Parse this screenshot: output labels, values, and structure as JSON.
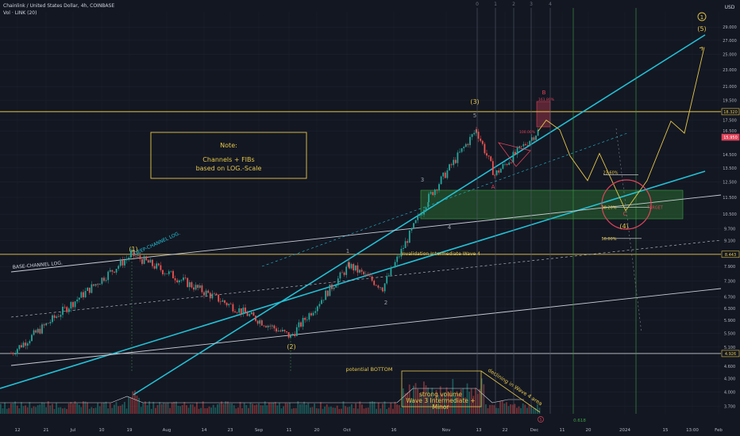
{
  "header": {
    "symbol_line": "Chainlink / United States Dollar, 4h, COINBASE",
    "volume_line": "Vol · LINK (20)"
  },
  "chart_meta": {
    "currency": "USD",
    "top_markers": [
      "0",
      "1",
      "2",
      "3",
      "4"
    ],
    "fib_bottom_label": "0.618",
    "corner_label": "5",
    "colors": {
      "background": "#131722",
      "channel_cyan": "#22c1d6",
      "white_line": "#c9ccd4",
      "yellow": "#e6c74a",
      "green_zone": "#2e7d32",
      "red": "#e0435a",
      "candle_up": "#26a69a",
      "candle_down": "#ef5350"
    }
  },
  "annotations": {
    "note_title": "Note:",
    "note_line1": "Channels + FIBs",
    "note_line2": "based on LOG.-Scale",
    "base_channel": "BASE-CHANNEL LOG.",
    "deep_channel": "DEEP-CHANNEL LOG.",
    "invalidation": "Invalidation Intermediate Wave 4",
    "potential_bottom": "potential BOTTOM",
    "strong_volume": "strong volume",
    "wave3_line": "Wave 3 Intermediate +",
    "minor": "Minor",
    "declining": "declining in Wave 4 area",
    "fib_2360": "23.60%",
    "fib_3820": "38.20%",
    "fib_5000": "50.00%",
    "target": "TARGET",
    "fib_161": "161.80%",
    "fib_100": "100.00%"
  },
  "wave_labels": {
    "w1_top": "(1)",
    "w2": "(2)",
    "w3_top": "(3)",
    "w4": "(4)",
    "w5": "(5)",
    "circle1": "1",
    "minor1": "1",
    "minor2": "2",
    "minor3": "3",
    "minor4": "4",
    "minor5": "5",
    "A": "A",
    "B": "B",
    "C": "C"
  },
  "chart_data": {
    "type": "candlestick",
    "yscale": "log",
    "ylim": [
      3.55,
      31.5
    ],
    "y_ticks": [
      3.7,
      4.0,
      4.3,
      4.6,
      5.1,
      5.5,
      5.9,
      6.3,
      6.7,
      7.3,
      7.9,
      8.4,
      9.1,
      9.7,
      10.5,
      11.5,
      12.5,
      13.5,
      14.5,
      16.5,
      17.5,
      19.5,
      21.0,
      23.0,
      25.0,
      27.0,
      29.0
    ],
    "y_tick_labels": [
      "3.700",
      "4.000",
      "4.300",
      "4.600",
      "5.100",
      "5.500",
      "5.900",
      "6.300",
      "6.700",
      "7.300",
      "7.900",
      "8.400",
      "9.100",
      "9.700",
      "10.500",
      "11.500",
      "12.500",
      "13.500",
      "14.500",
      "16.500",
      "17.500",
      "19.500",
      "21.000",
      "23.000",
      "25.000",
      "27.000",
      "29.000"
    ],
    "x_tick_labels": [
      "12",
      "21",
      "Jul",
      "10",
      "19",
      "Aug",
      "14",
      "23",
      "Sep",
      "11",
      "20",
      "Oct",
      "16",
      "Nov",
      "13",
      "22",
      "Dec",
      "11",
      "20",
      "2024",
      "15",
      "13:00",
      "Feb"
    ],
    "price_flags": [
      {
        "label": "18.320",
        "value": 18.32,
        "kind": "level"
      },
      {
        "label": "15.950",
        "value": 15.95,
        "kind": "last"
      },
      {
        "label": "8.443",
        "value": 8.443,
        "kind": "level"
      },
      {
        "label": "4.926",
        "value": 4.926,
        "kind": "level"
      }
    ],
    "horizontal_levels": [
      18.32,
      8.443,
      4.926
    ],
    "path_waypoints": [
      {
        "x": "mid-May",
        "y": 4.93
      },
      {
        "x": "Jul 19",
        "y": 8.44
      },
      {
        "x": "Sep 11",
        "y": 5.4
      },
      {
        "x": "Oct 10",
        "y": 7.95
      },
      {
        "x": "Oct 18",
        "y": 7.05
      },
      {
        "x": "Nov 01",
        "y": 11.5
      },
      {
        "x": "Nov 12",
        "y": 16.6
      },
      {
        "x": "Nov 17",
        "y": 13.0
      },
      {
        "x": "Dec 02",
        "y": 16.5
      }
    ],
    "projection": [
      {
        "wave": "B",
        "y": 18.9
      },
      {
        "wave": "A",
        "y": 14.4
      },
      {
        "wave": "(4) C",
        "y": 10.7
      },
      {
        "wave": "(5)",
        "y": 26.0
      }
    ],
    "volume_bars": "20-period LINK volume, peak during Wave 3 (late Oct – early Nov)"
  }
}
